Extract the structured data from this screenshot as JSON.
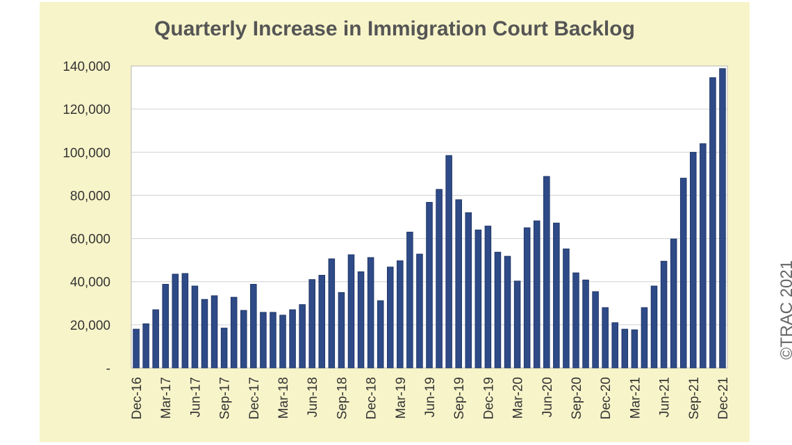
{
  "chart_data": {
    "type": "bar",
    "title": "Quarterly Increase in Immigration Court Backlog",
    "xlabel": "",
    "ylabel": "",
    "ylim": [
      0,
      140000
    ],
    "yticks": [
      "-",
      "20,000",
      "40,000",
      "60,000",
      "80,000",
      "100,000",
      "120,000",
      "140,000"
    ],
    "grid": true,
    "legend": "none",
    "bar_color": "#2e4a87",
    "bar_edge": "#1a2f5e",
    "categories": [
      "Dec-16",
      "Jan-17",
      "Feb-17",
      "Mar-17",
      "Apr-17",
      "May-17",
      "Jun-17",
      "Jul-17",
      "Aug-17",
      "Sep-17",
      "Oct-17",
      "Nov-17",
      "Dec-17",
      "Jan-18",
      "Feb-18",
      "Mar-18",
      "Apr-18",
      "May-18",
      "Jun-18",
      "Jul-18",
      "Aug-18",
      "Sep-18",
      "Oct-18",
      "Nov-18",
      "Dec-18",
      "Jan-19",
      "Feb-19",
      "Mar-19",
      "Apr-19",
      "May-19",
      "Jun-19",
      "Jul-19",
      "Aug-19",
      "Sep-19",
      "Oct-19",
      "Nov-19",
      "Dec-19",
      "Jan-20",
      "Feb-20",
      "Mar-20",
      "Apr-20",
      "May-20",
      "Jun-20",
      "Jul-20",
      "Aug-20",
      "Sep-20",
      "Oct-20",
      "Nov-20",
      "Dec-20",
      "Jan-21",
      "Feb-21",
      "Mar-21",
      "Apr-21",
      "May-21",
      "Jun-21",
      "Jul-21",
      "Aug-21",
      "Sep-21",
      "Oct-21",
      "Nov-21",
      "Dec-21"
    ],
    "x_tick_labels": [
      "Dec-16",
      "Mar-17",
      "Jun-17",
      "Sep-17",
      "Dec-17",
      "Mar-18",
      "Jun-18",
      "Sep-18",
      "Dec-18",
      "Mar-19",
      "Jun-19",
      "Sep-19",
      "Dec-19",
      "Mar-20",
      "Jun-20",
      "Sep-20",
      "Dec-20",
      "Mar-21",
      "Jun-21",
      "Sep-21",
      "Dec-21"
    ],
    "values": [
      18000,
      20500,
      27000,
      38800,
      43500,
      43800,
      38000,
      31800,
      33500,
      18500,
      32800,
      26700,
      38800,
      25800,
      25800,
      24500,
      27000,
      29400,
      41000,
      43000,
      50600,
      35000,
      52500,
      44600,
      51200,
      31200,
      46800,
      49700,
      63000,
      52800,
      76800,
      82800,
      98500,
      78000,
      72000,
      64000,
      65800,
      53700,
      51800,
      40300,
      65000,
      68200,
      88800,
      67200,
      55200,
      44100,
      40800,
      35400,
      28000,
      21000,
      18000,
      17700,
      28000,
      38000,
      49500,
      59800,
      88000,
      100000,
      104000,
      134600,
      138800
    ]
  },
  "watermark": "©TRAC 2021"
}
